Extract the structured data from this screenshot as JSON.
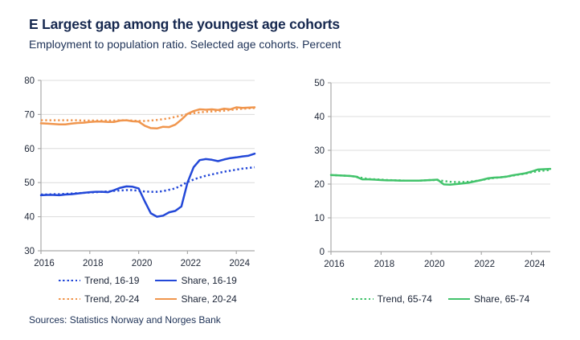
{
  "header": {
    "title": "E Largest gap among the youngest age cohorts",
    "subtitle": "Employment to population ratio. Selected age cohorts. Percent"
  },
  "footer": {
    "sources": "Sources: Statistics Norway and Norges Bank"
  },
  "colors": {
    "blue": "#2348d8",
    "orange": "#f0964e",
    "green": "#42c36b",
    "text_navy": "#17294d",
    "grid": "#dcdcdc",
    "axis": "#aaaaaa"
  },
  "chart_data": [
    {
      "type": "line",
      "title": "",
      "xlabel": "",
      "ylabel": "",
      "xlim": [
        2016,
        2024.75
      ],
      "ylim": [
        30,
        80
      ],
      "yticks": [
        30,
        40,
        50,
        60,
        70,
        80
      ],
      "xticks": [
        2016,
        2018,
        2020,
        2022,
        2024
      ],
      "grid": true,
      "legend_position": "bottom",
      "x": [
        2016.0,
        2016.25,
        2016.5,
        2016.75,
        2017.0,
        2017.25,
        2017.5,
        2017.75,
        2018.0,
        2018.25,
        2018.5,
        2018.75,
        2019.0,
        2019.25,
        2019.5,
        2019.75,
        2020.0,
        2020.25,
        2020.5,
        2020.75,
        2021.0,
        2021.25,
        2021.5,
        2021.75,
        2022.0,
        2022.25,
        2022.5,
        2022.75,
        2023.0,
        2023.25,
        2023.5,
        2023.75,
        2024.0,
        2024.25,
        2024.5,
        2024.75
      ],
      "series": [
        {
          "name": "Trend, 16-19",
          "color": "#2348d8",
          "style": "dotted",
          "values": [
            46.5,
            46.5,
            46.6,
            46.6,
            46.7,
            46.8,
            46.9,
            47.0,
            47.1,
            47.2,
            47.3,
            47.4,
            47.6,
            47.7,
            47.8,
            47.8,
            47.6,
            47.4,
            47.3,
            47.3,
            47.5,
            47.9,
            48.3,
            49.2,
            50.2,
            50.9,
            51.5,
            52.0,
            52.4,
            52.8,
            53.2,
            53.5,
            53.8,
            54.1,
            54.3,
            54.5
          ]
        },
        {
          "name": "Share, 16-19",
          "color": "#2348d8",
          "style": "solid",
          "values": [
            46.3,
            46.4,
            46.4,
            46.3,
            46.5,
            46.6,
            46.8,
            47.0,
            47.2,
            47.3,
            47.3,
            47.2,
            47.8,
            48.5,
            48.9,
            48.8,
            48.3,
            44.5,
            41.0,
            40.0,
            40.3,
            41.3,
            41.7,
            43.0,
            50.0,
            54.5,
            56.6,
            56.9,
            56.7,
            56.3,
            56.8,
            57.2,
            57.4,
            57.7,
            57.9,
            58.5
          ]
        },
        {
          "name": "Trend, 20-24",
          "color": "#f0964e",
          "style": "dotted",
          "values": [
            68.3,
            68.3,
            68.3,
            68.3,
            68.3,
            68.3,
            68.3,
            68.2,
            68.2,
            68.2,
            68.2,
            68.2,
            68.2,
            68.3,
            68.3,
            68.2,
            68.1,
            68.1,
            68.2,
            68.4,
            68.6,
            68.9,
            69.3,
            69.7,
            70.1,
            70.4,
            70.6,
            70.8,
            70.9,
            71.0,
            71.1,
            71.3,
            71.5,
            71.7,
            71.8,
            71.9
          ]
        },
        {
          "name": "Share, 20-24",
          "color": "#f0964e",
          "style": "solid",
          "values": [
            67.4,
            67.3,
            67.2,
            67.1,
            67.1,
            67.3,
            67.5,
            67.6,
            67.8,
            67.9,
            67.9,
            67.8,
            67.8,
            68.2,
            68.3,
            68.0,
            67.9,
            66.7,
            66.0,
            65.9,
            66.4,
            66.3,
            67.0,
            68.5,
            70.2,
            71.0,
            71.5,
            71.4,
            71.5,
            71.3,
            71.7,
            71.5,
            72.1,
            71.9,
            72.0,
            72.1
          ]
        }
      ]
    },
    {
      "type": "line",
      "title": "",
      "xlabel": "",
      "ylabel": "",
      "xlim": [
        2016,
        2024.75
      ],
      "ylim": [
        0,
        50
      ],
      "yticks": [
        0,
        10,
        20,
        30,
        40,
        50
      ],
      "xticks": [
        2016,
        2018,
        2020,
        2022,
        2024
      ],
      "grid": true,
      "legend_position": "bottom",
      "x": [
        2016.0,
        2016.25,
        2016.5,
        2016.75,
        2017.0,
        2017.25,
        2017.5,
        2017.75,
        2018.0,
        2018.25,
        2018.5,
        2018.75,
        2019.0,
        2019.25,
        2019.5,
        2019.75,
        2020.0,
        2020.25,
        2020.5,
        2020.75,
        2021.0,
        2021.25,
        2021.5,
        2021.75,
        2022.0,
        2022.25,
        2022.5,
        2022.75,
        2023.0,
        2023.25,
        2023.5,
        2023.75,
        2024.0,
        2024.25,
        2024.5,
        2024.75
      ],
      "series": [
        {
          "name": "Trend, 65-74",
          "color": "#42c36b",
          "style": "dotted",
          "values": [
            22.7,
            22.6,
            22.5,
            22.4,
            22.2,
            21.8,
            21.5,
            21.4,
            21.3,
            21.2,
            21.1,
            21.1,
            21.0,
            21.0,
            21.0,
            21.1,
            21.2,
            21.2,
            20.9,
            20.7,
            20.6,
            20.6,
            20.7,
            20.9,
            21.2,
            21.5,
            21.8,
            22.0,
            22.2,
            22.5,
            22.8,
            23.1,
            23.5,
            23.8,
            24.0,
            24.2
          ]
        },
        {
          "name": "Share, 65-74",
          "color": "#42c36b",
          "style": "solid",
          "values": [
            22.7,
            22.6,
            22.5,
            22.4,
            22.2,
            21.4,
            21.4,
            21.3,
            21.2,
            21.1,
            21.1,
            21.0,
            21.0,
            21.0,
            21.0,
            21.1,
            21.2,
            21.3,
            19.9,
            19.8,
            20.0,
            20.2,
            20.4,
            20.8,
            21.2,
            21.7,
            21.9,
            22.0,
            22.2,
            22.6,
            22.9,
            23.2,
            23.7,
            24.3,
            24.4,
            24.5
          ]
        }
      ]
    }
  ]
}
